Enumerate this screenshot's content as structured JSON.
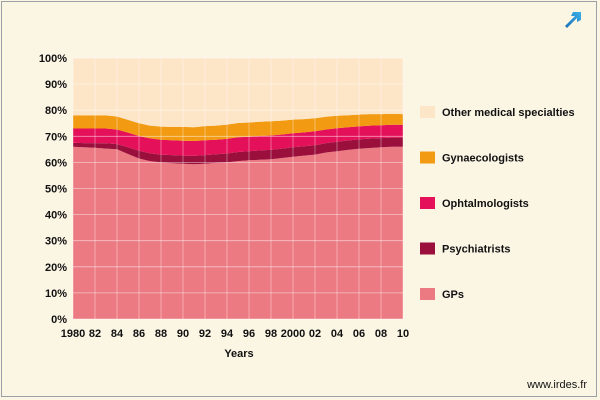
{
  "colors": {
    "background": "#fbf5e4",
    "other": "#fde5c8",
    "gynaecologists": "#f29a12",
    "ophthalmologists": "#e5105a",
    "psychiatrists": "#9b0f3d",
    "gps": "#ec7a82",
    "grid": "#ffffff",
    "icon": "#1f8fd1"
  },
  "icons": {
    "corner": "external-arrow-icon"
  },
  "source": "www.irdes.fr",
  "chart_data": {
    "type": "area",
    "stacked": true,
    "xlabel": "Years",
    "x": [
      1980,
      1981,
      1982,
      1983,
      1984,
      1985,
      1986,
      1987,
      1988,
      1989,
      1990,
      1991,
      1992,
      1993,
      1994,
      1995,
      1996,
      1997,
      1998,
      1999,
      2000,
      2001,
      2002,
      2003,
      2004,
      2005,
      2006,
      2007,
      2008,
      2009,
      2010
    ],
    "x_tick_labels": [
      "1980",
      "82",
      "84",
      "86",
      "88",
      "90",
      "92",
      "94",
      "96",
      "98",
      "2000",
      "02",
      "04",
      "06",
      "08",
      "10"
    ],
    "y_tick_labels": [
      "0%",
      "10%",
      "20%",
      "30%",
      "40%",
      "50%",
      "60%",
      "70%",
      "80%",
      "90%",
      "100%"
    ],
    "ylim": [
      0,
      100
    ],
    "grid": true,
    "legend_position": "right",
    "legend_order": [
      "Other medical specialties",
      "Gynaecologists",
      "Ophtalmologists",
      "Psychiatrists",
      "GPs"
    ],
    "series": [
      {
        "name": "GPs",
        "color_key": "gps",
        "values": [
          66.0,
          65.8,
          65.6,
          65.3,
          65.0,
          63.2,
          61.5,
          60.5,
          60.0,
          59.7,
          59.5,
          59.3,
          59.5,
          59.8,
          60.0,
          60.5,
          60.8,
          61.0,
          61.2,
          61.7,
          62.2,
          62.6,
          63.0,
          63.8,
          64.3,
          64.8,
          65.2,
          65.5,
          65.8,
          66.0,
          66.0
        ]
      },
      {
        "name": "Psychiatrists",
        "color_key": "psychiatrists",
        "values": [
          1.5,
          1.6,
          1.8,
          2.0,
          2.0,
          2.6,
          3.0,
          3.0,
          3.0,
          3.1,
          3.1,
          3.2,
          3.3,
          3.3,
          3.4,
          3.5,
          3.5,
          3.6,
          3.6,
          3.6,
          3.6,
          3.6,
          3.6,
          3.6,
          3.6,
          3.6,
          3.6,
          3.6,
          3.5,
          3.5,
          3.5
        ]
      },
      {
        "name": "Ophtalmologists",
        "color_key": "ophthalmologists",
        "values": [
          5.5,
          5.6,
          5.6,
          5.7,
          5.6,
          5.6,
          5.6,
          5.7,
          5.7,
          5.7,
          5.7,
          5.7,
          5.7,
          5.6,
          5.6,
          5.6,
          5.5,
          5.5,
          5.5,
          5.4,
          5.4,
          5.3,
          5.3,
          5.2,
          5.2,
          5.1,
          5.0,
          5.0,
          4.9,
          4.9,
          4.9
        ]
      },
      {
        "name": "Gynaecologists",
        "color_key": "gynaecologists",
        "values": [
          5.0,
          5.0,
          5.0,
          5.0,
          5.0,
          4.9,
          4.9,
          4.9,
          5.0,
          5.1,
          5.3,
          5.3,
          5.4,
          5.4,
          5.5,
          5.5,
          5.5,
          5.5,
          5.5,
          5.3,
          5.2,
          5.1,
          5.0,
          4.9,
          4.8,
          4.6,
          4.5,
          4.4,
          4.3,
          4.2,
          4.1
        ]
      },
      {
        "name": "Other medical specialties",
        "color_key": "other",
        "values": [
          22.0,
          22.0,
          22.0,
          22.0,
          22.4,
          23.7,
          25.0,
          25.9,
          26.3,
          26.4,
          26.4,
          26.5,
          26.1,
          25.9,
          25.5,
          24.9,
          24.7,
          24.4,
          24.2,
          24.0,
          23.6,
          23.4,
          23.1,
          22.5,
          22.1,
          21.9,
          21.7,
          21.5,
          21.5,
          21.4,
          21.5
        ]
      }
    ]
  }
}
